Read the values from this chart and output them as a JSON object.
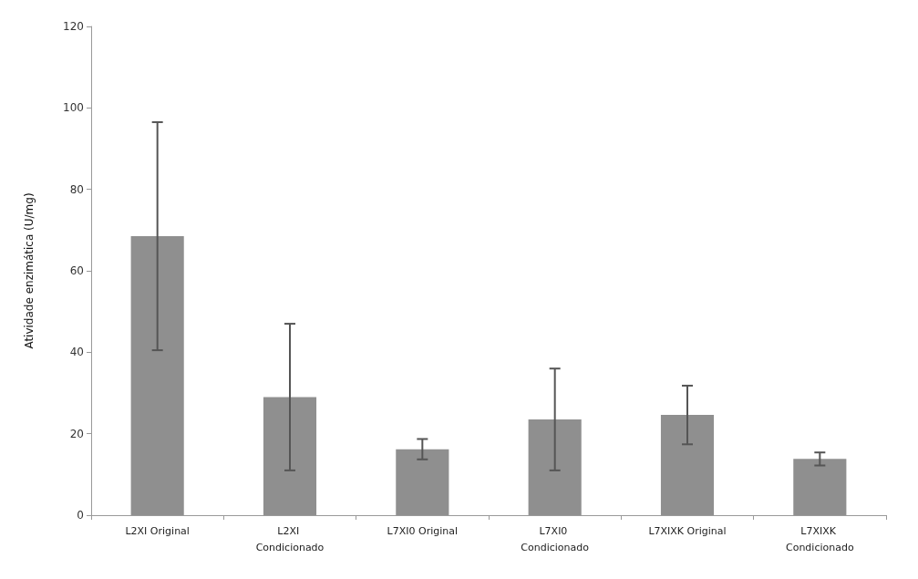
{
  "chart_data": {
    "type": "bar",
    "ylabel": "Atividade enzimática (U/mg)",
    "categories": [
      "L2XI Original",
      "L2XI Condicionado",
      "L7XI0 Original",
      "L7XI0 Condicionado",
      "L7XIXK Original",
      "L7XIXK Condicionado"
    ],
    "values": [
      68.5,
      29,
      16.2,
      23.5,
      24.6,
      13.8
    ],
    "errors": [
      28,
      18,
      2.5,
      12.5,
      7.2,
      1.6
    ],
    "color": "#8f8f8f",
    "ylim": [
      0,
      120
    ],
    "yticks": [
      0,
      20,
      40,
      60,
      80,
      100,
      120
    ],
    "grid": false
  }
}
